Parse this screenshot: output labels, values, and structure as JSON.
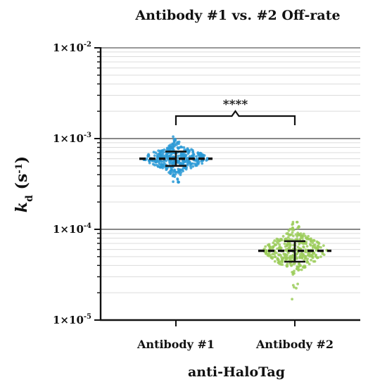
{
  "chart_data": {
    "type": "scatter",
    "title": "Antibody #1 vs. #2 Off-rate",
    "xlabel": "anti-HaloTag",
    "ylabel": {
      "symbol": "k",
      "subscript": "d",
      "unit_open": " (s",
      "unit_sup": "-1",
      "unit_close": ")"
    },
    "y_scale": "log",
    "ylim": [
      1e-05,
      0.01
    ],
    "y_ticks": [
      {
        "value": 0.01,
        "base": "1×10",
        "exp": "-2"
      },
      {
        "value": 0.001,
        "base": "1×10",
        "exp": "-3"
      },
      {
        "value": 0.0001,
        "base": "1×10",
        "exp": "-4"
      },
      {
        "value": 1e-05,
        "base": "1×10",
        "exp": "-5"
      }
    ],
    "grid": true,
    "categories": [
      "Antibody #1",
      "Antibody #2"
    ],
    "series": [
      {
        "category": "Antibody #1",
        "color": "#2b9ad6",
        "median": 0.0006,
        "lower": 0.0005,
        "upper": 0.00072,
        "min": 0.00033,
        "max": 0.00105
      },
      {
        "category": "Antibody #2",
        "color": "#9ccd5c",
        "median": 5.8e-05,
        "lower": 4.4e-05,
        "upper": 7.4e-05,
        "min": 1.7e-05,
        "max": 0.00012
      }
    ],
    "annotation": {
      "text": "****",
      "between": [
        "Antibody #1",
        "Antibody #2"
      ]
    }
  }
}
